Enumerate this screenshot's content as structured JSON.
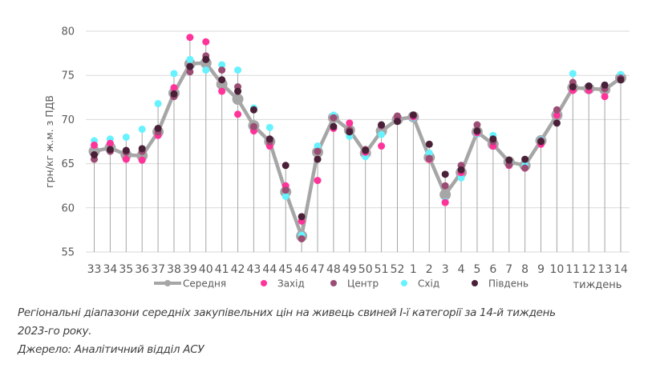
{
  "chart_data": {
    "type": "line",
    "title": "",
    "xlabel": "тиждень",
    "ylabel": "грн/кг ж.м. з ПДВ",
    "ylim": [
      55,
      80
    ],
    "yticks": [
      55,
      60,
      65,
      70,
      75,
      80
    ],
    "grid": true,
    "legend_position": "bottom",
    "categories": [
      "33",
      "34",
      "35",
      "36",
      "37",
      "38",
      "39",
      "40",
      "41",
      "42",
      "43",
      "44",
      "45",
      "46",
      "47",
      "48",
      "49",
      "50",
      "51",
      "52",
      "1",
      "2",
      "3",
      "4",
      "5",
      "6",
      "7",
      "8",
      "9",
      "10",
      "11",
      "12",
      "13",
      "14"
    ],
    "series": [
      {
        "name": "Середня",
        "style": "line-marker",
        "color": "#a6a6a6",
        "values": [
          66.4,
          66.8,
          66.0,
          65.9,
          68.6,
          73.0,
          76.3,
          76.4,
          74.0,
          72.3,
          69.3,
          67.5,
          61.8,
          56.8,
          66.3,
          70.2,
          68.8,
          66.2,
          68.7,
          70.0,
          70.3,
          65.7,
          61.5,
          64.0,
          68.6,
          67.2,
          65.2,
          64.8,
          67.6,
          70.5,
          73.6,
          73.5,
          73.4,
          74.7
        ]
      },
      {
        "name": "Захід",
        "style": "marker",
        "color": "#ff3399",
        "values": [
          67.1,
          67.3,
          65.5,
          65.4,
          68.2,
          73.6,
          79.3,
          78.8,
          73.2,
          70.6,
          68.7,
          67.0,
          62.5,
          58.5,
          63.1,
          69.0,
          69.6,
          66.3,
          67.0,
          70.2,
          70.3,
          65.5,
          60.6,
          64.0,
          68.5,
          67.0,
          64.8,
          64.5,
          67.2,
          70.5,
          73.3,
          73.3,
          72.6,
          74.6
        ]
      },
      {
        "name": "Центр",
        "style": "marker",
        "color": "#9b4d74",
        "values": [
          65.5,
          66.4,
          66.3,
          66.4,
          68.6,
          72.6,
          75.4,
          77.2,
          75.6,
          73.7,
          69.2,
          67.5,
          62.0,
          56.5,
          66.4,
          70.2,
          68.8,
          66.6,
          69.3,
          70.4,
          70.5,
          65.6,
          62.5,
          64.8,
          69.4,
          67.5,
          64.9,
          64.5,
          67.6,
          71.1,
          74.2,
          73.7,
          73.5,
          74.7
        ]
      },
      {
        "name": "Схід",
        "style": "marker",
        "color": "#66f2ff",
        "values": [
          67.6,
          67.8,
          68.0,
          68.9,
          71.8,
          75.2,
          76.8,
          75.6,
          76.2,
          75.6,
          71.3,
          69.1,
          61.3,
          56.9,
          67.0,
          70.5,
          68.1,
          65.8,
          68.3,
          70.1,
          70.2,
          66.2,
          60.7,
          63.4,
          68.4,
          68.2,
          65.3,
          64.8,
          67.7,
          70.6,
          75.2,
          73.8,
          73.9,
          75.1
        ]
      },
      {
        "name": "Південь",
        "style": "marker",
        "color": "#4a1f38",
        "values": [
          66.0,
          66.6,
          66.5,
          66.7,
          69.0,
          72.9,
          76.0,
          76.8,
          74.5,
          73.2,
          71.1,
          67.8,
          64.8,
          59.0,
          65.5,
          69.2,
          68.6,
          66.5,
          69.4,
          69.8,
          70.5,
          67.2,
          63.8,
          64.3,
          68.7,
          67.8,
          65.4,
          65.5,
          67.5,
          69.6,
          73.7,
          73.8,
          73.9,
          74.5
        ]
      }
    ]
  },
  "caption": {
    "line1": "Регіональні діапазони середніх закупівельних цін на живець свиней І-ї категорії за 14-й тиждень",
    "line2": "2023-го року.",
    "line3": "Джерело: Аналітичний відділ АСУ"
  }
}
